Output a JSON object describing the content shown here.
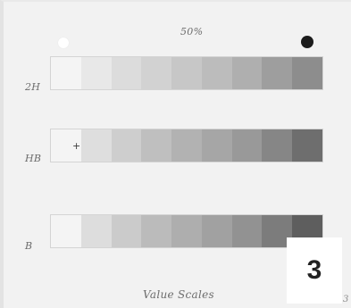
{
  "page": {
    "title_label": "50%",
    "caption": "Value Scales",
    "corner_mark": "3",
    "badge_number": "3"
  },
  "markers": {
    "left": "white-circle",
    "right": "black-circle"
  },
  "scales": [
    {
      "label": "2H",
      "colors": [
        "#f4f4f4",
        "#e8e8e8",
        "#dcdcdc",
        "#d2d2d2",
        "#c7c7c7",
        "#bcbcbc",
        "#afafaf",
        "#9e9e9e",
        "#8d8d8d"
      ]
    },
    {
      "label": "HB",
      "colors": [
        "#f4f4f4",
        "#dedede",
        "#cecece",
        "#bfbfbf",
        "#b2b2b2",
        "#a6a6a6",
        "#999999",
        "#868686",
        "#6e6e6e"
      ]
    },
    {
      "label": "B",
      "colors": [
        "#f4f4f4",
        "#dddddd",
        "#cbcbcb",
        "#bbbbbb",
        "#aeaeae",
        "#a1a1a1",
        "#929292",
        "#7c7c7c",
        "#5e5e5e"
      ]
    }
  ]
}
